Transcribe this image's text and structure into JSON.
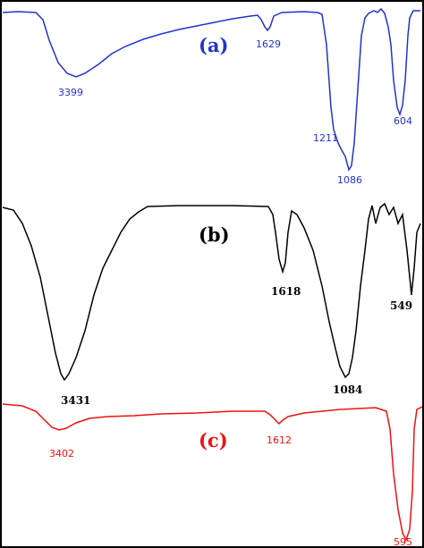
{
  "chart_data": [
    {
      "type": "line",
      "label": "(a)",
      "color": "#2233cc",
      "peak_labels": [
        {
          "text": "3399",
          "wavenumber": 3399
        },
        {
          "text": "1629",
          "wavenumber": 1629
        },
        {
          "text": "1211",
          "wavenumber": 1211
        },
        {
          "text": "1086",
          "wavenumber": 1086
        },
        {
          "text": "604",
          "wavenumber": 604
        }
      ]
    },
    {
      "type": "line",
      "label": "(b)",
      "color": "#000000",
      "peak_labels": [
        {
          "text": "3431",
          "wavenumber": 3431
        },
        {
          "text": "1618",
          "wavenumber": 1618
        },
        {
          "text": "1084",
          "wavenumber": 1084
        },
        {
          "text": "549",
          "wavenumber": 549
        }
      ]
    },
    {
      "type": "line",
      "label": "(c)",
      "color": "#ee1111",
      "peak_labels": [
        {
          "text": "3402",
          "wavenumber": 3402
        },
        {
          "text": "1612",
          "wavenumber": 1612
        },
        {
          "text": "595",
          "wavenumber": 595
        }
      ]
    }
  ]
}
